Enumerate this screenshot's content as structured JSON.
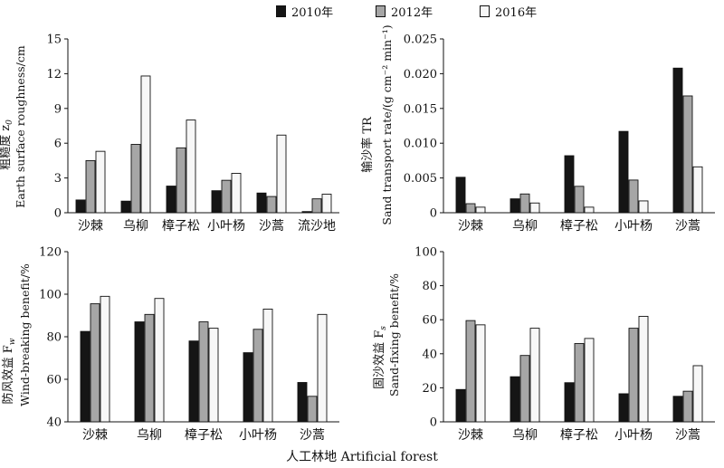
{
  "legend": [
    {
      "label": "2010年",
      "color": "#151515"
    },
    {
      "label": "2012年",
      "color": "#a6a6a6"
    },
    {
      "label": "2016年",
      "color": "#f7f7f7"
    }
  ],
  "x_axis_title": "人工林地  Artificial forest",
  "chart_data": [
    {
      "type": "bar",
      "ylabel_cn": "粗糙度 z",
      "ylabel_sub": "0",
      "ylabel_en": "Earth surface roughness/cm",
      "ylim": [
        0,
        15
      ],
      "yticks": [
        "0",
        "3",
        "6",
        "9",
        "12",
        "15"
      ],
      "categories": [
        "沙棘",
        "乌柳",
        "樟子松",
        "小叶杨",
        "沙蒿",
        "流沙地"
      ],
      "series": [
        {
          "name": "2010年",
          "values": [
            1.1,
            1.0,
            2.3,
            1.9,
            1.7,
            0.1
          ]
        },
        {
          "name": "2012年",
          "values": [
            4.5,
            5.9,
            5.6,
            2.8,
            1.4,
            1.2
          ]
        },
        {
          "name": "2016年",
          "values": [
            5.3,
            11.8,
            8.0,
            3.4,
            6.7,
            1.6
          ]
        }
      ]
    },
    {
      "type": "bar",
      "ylabel_cn": "输沙率 TR",
      "ylabel_en": "Sand transport rate/(g cm⁻² min⁻¹)",
      "ylim": [
        0,
        0.025
      ],
      "yticks": [
        "0",
        "0.005",
        "0.010",
        "0.015",
        "0.020",
        "0.025"
      ],
      "categories": [
        "沙棘",
        "乌柳",
        "樟子松",
        "小叶杨",
        "沙蒿"
      ],
      "series": [
        {
          "name": "2010年",
          "values": [
            0.0051,
            0.002,
            0.0082,
            0.0117,
            0.0208
          ]
        },
        {
          "name": "2012年",
          "values": [
            0.0013,
            0.0027,
            0.0038,
            0.0047,
            0.0168
          ]
        },
        {
          "name": "2016年",
          "values": [
            0.0008,
            0.0014,
            0.0008,
            0.0017,
            0.0066
          ]
        }
      ]
    },
    {
      "type": "bar",
      "ylabel_cn": "防风效益 F",
      "ylabel_sub": "w",
      "ylabel_en": "Wind-breaking benefit/%",
      "ylim": [
        40,
        120
      ],
      "yticks": [
        "40",
        "60",
        "80",
        "100",
        "120"
      ],
      "categories": [
        "沙棘",
        "乌柳",
        "樟子松",
        "小叶杨",
        "沙蒿"
      ],
      "series": [
        {
          "name": "2010年",
          "values": [
            82.5,
            87.0,
            78.0,
            72.5,
            58.5
          ]
        },
        {
          "name": "2012年",
          "values": [
            95.5,
            90.5,
            87.0,
            83.5,
            52.0
          ]
        },
        {
          "name": "2016年",
          "values": [
            99.0,
            98.0,
            84.0,
            93.0,
            90.5
          ]
        }
      ]
    },
    {
      "type": "bar",
      "ylabel_cn": "固沙效益 F",
      "ylabel_sub": "s",
      "ylabel_en": "Sand-fixing benefit/%",
      "ylim": [
        0,
        100
      ],
      "yticks": [
        "0",
        "20",
        "40",
        "60",
        "80",
        "100"
      ],
      "categories": [
        "沙棘",
        "乌柳",
        "樟子松",
        "小叶杨",
        "沙蒿"
      ],
      "series": [
        {
          "name": "2010年",
          "values": [
            19.0,
            26.5,
            23.0,
            16.5,
            15.0
          ]
        },
        {
          "name": "2012年",
          "values": [
            59.5,
            39.0,
            46.0,
            55.0,
            18.0
          ]
        },
        {
          "name": "2016年",
          "values": [
            57.0,
            55.0,
            49.0,
            62.0,
            33.0
          ]
        }
      ]
    }
  ]
}
